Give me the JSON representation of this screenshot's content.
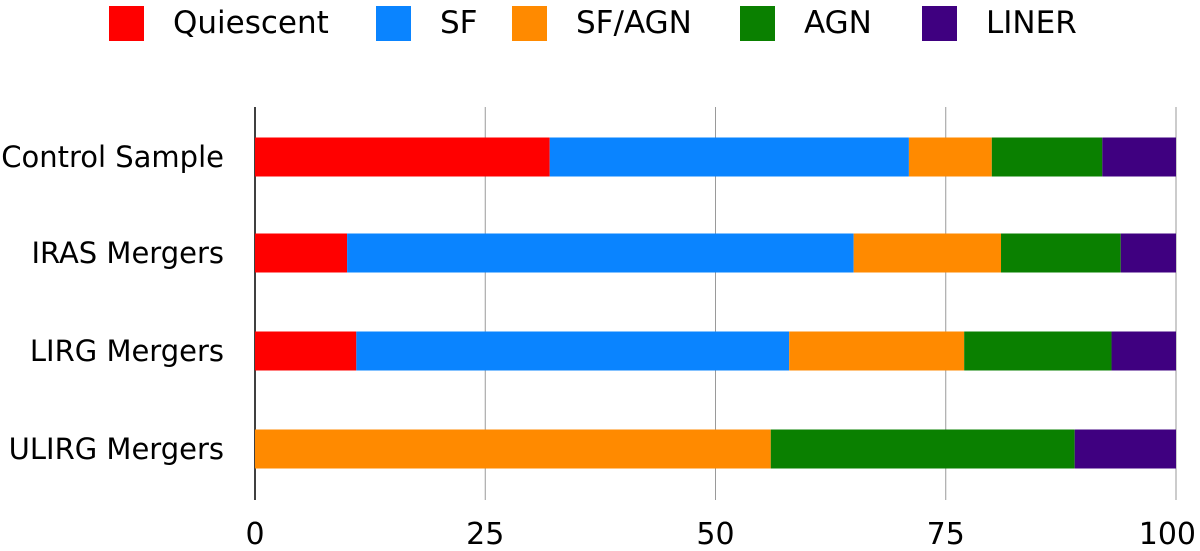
{
  "chart_data": {
    "type": "bar",
    "orientation": "horizontal",
    "stacked": true,
    "categories": [
      "Control Sample",
      "IRAS Mergers",
      "LIRG Mergers",
      "ULIRG Mergers"
    ],
    "series": [
      {
        "name": "Quiescent",
        "color": "#ff0000",
        "values": [
          32,
          10,
          11,
          0
        ]
      },
      {
        "name": "SF",
        "color": "#0a84ff",
        "values": [
          39,
          55,
          47,
          0
        ]
      },
      {
        "name": "SF/AGN",
        "color": "#ff8a00",
        "values": [
          9,
          16,
          19,
          56
        ]
      },
      {
        "name": "AGN",
        "color": "#0a8000",
        "values": [
          12,
          13,
          16,
          33
        ]
      },
      {
        "name": "LINER",
        "color": "#3f0080",
        "values": [
          8,
          6,
          7,
          11
        ]
      }
    ],
    "xlim": [
      0,
      100
    ],
    "xticks": [
      "0",
      "25",
      "50",
      "75",
      "100"
    ],
    "grid": true,
    "legend_position": "top"
  }
}
